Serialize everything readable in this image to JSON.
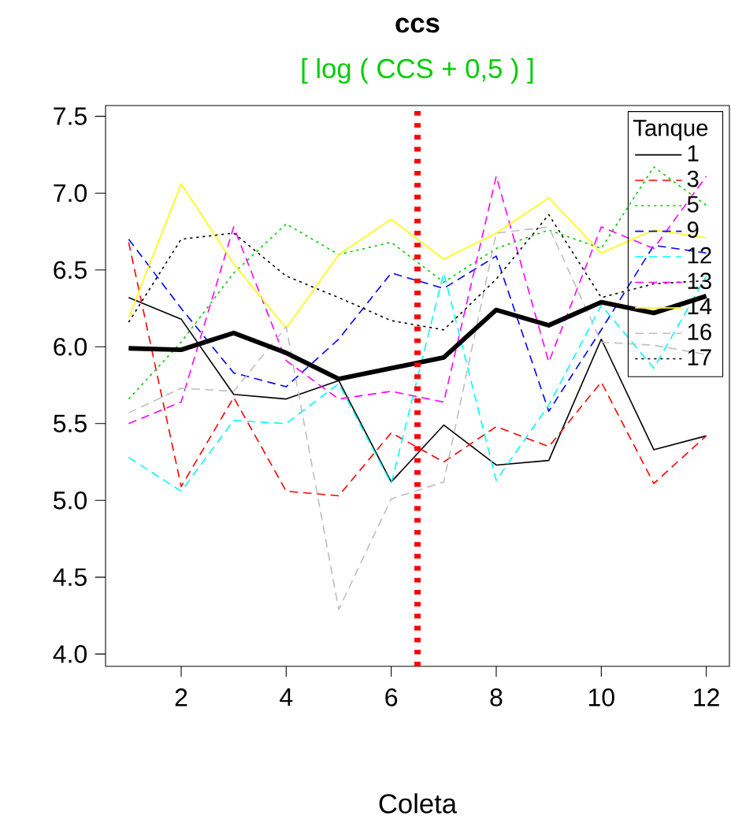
{
  "chart_data": {
    "type": "line",
    "title": "ccs",
    "subtitle": "[ log ( CCS + 0,5 ) ]",
    "xlabel": "Coleta",
    "legend_title": "Tanque",
    "legend": "top right",
    "grid": false,
    "marker": "none",
    "x": [
      1,
      2,
      3,
      4,
      5,
      6,
      7,
      8,
      9,
      10,
      11,
      12
    ],
    "xlim": [
      0.56,
      12.44
    ],
    "xticks": [
      2,
      4,
      6,
      8,
      10,
      12
    ],
    "ylim": [
      3.92,
      7.57
    ],
    "yticks": [
      {
        "value": 4,
        "label": "4.0"
      },
      {
        "value": 4.5,
        "label": "4.5"
      },
      {
        "value": 5,
        "label": "5.0"
      },
      {
        "value": 5.5,
        "label": "5.5"
      },
      {
        "value": 6,
        "label": "6.0"
      },
      {
        "value": 6.5,
        "label": "6.5"
      },
      {
        "value": 7,
        "label": "7.0"
      },
      {
        "value": 7.5,
        "label": "7.5"
      }
    ],
    "ref_lines": [
      {
        "axis": "x",
        "value": 6.5,
        "color": "#ff0000",
        "line_style": "dotted"
      }
    ],
    "series": [
      {
        "name": "1",
        "color": "#000000",
        "line_style": "solid",
        "values": [
          6.32,
          6.18,
          5.69,
          5.66,
          5.78,
          5.12,
          5.49,
          5.23,
          5.26,
          6.05,
          5.33,
          5.42
        ]
      },
      {
        "name": "3",
        "color": "#ff0000",
        "line_style": "dashed",
        "values": [
          6.68,
          5.09,
          5.67,
          5.06,
          5.03,
          5.44,
          5.25,
          5.48,
          5.35,
          5.77,
          5.11,
          5.42
        ]
      },
      {
        "name": "5",
        "color": "#00cd00",
        "line_style": "dotted",
        "values": [
          5.66,
          6.03,
          6.48,
          6.8,
          6.6,
          6.68,
          6.42,
          6.64,
          6.76,
          6.64,
          7.17,
          6.92
        ]
      },
      {
        "name": "9",
        "color": "#0000ff",
        "line_style": "dashed",
        "values": [
          6.7,
          6.25,
          5.83,
          5.74,
          6.05,
          6.48,
          6.38,
          6.59,
          5.58,
          6.11,
          6.66,
          6.61
        ]
      },
      {
        "name": "12",
        "color": "#00ffff",
        "line_style": "dashed",
        "values": [
          5.28,
          5.06,
          5.52,
          5.5,
          5.76,
          5.11,
          6.48,
          5.13,
          5.62,
          6.27,
          5.86,
          6.46
        ]
      },
      {
        "name": "13",
        "color": "#ff00ff",
        "line_style": "dashed",
        "values": [
          5.5,
          5.64,
          6.78,
          5.91,
          5.66,
          5.71,
          5.64,
          7.11,
          5.9,
          6.78,
          6.64,
          7.11
        ]
      },
      {
        "name": "14",
        "color": "#ffff00",
        "line_style": "solid",
        "values": [
          6.19,
          7.06,
          6.54,
          6.12,
          6.6,
          6.83,
          6.57,
          6.74,
          6.97,
          6.61,
          6.76,
          6.71
        ]
      },
      {
        "name": "16",
        "color": "#bebebe",
        "line_style": "dashed",
        "values": [
          5.57,
          5.73,
          5.71,
          6.13,
          4.29,
          5.01,
          5.12,
          6.74,
          6.78,
          6.03,
          6.01,
          5.95
        ]
      },
      {
        "name": "17",
        "color": "#000000",
        "line_style": "dotted",
        "values": [
          6.16,
          6.7,
          6.74,
          6.46,
          6.32,
          6.17,
          6.11,
          6.44,
          6.86,
          6.32,
          6.41,
          6.43
        ]
      },
      {
        "color": "#000000",
        "line_style": "solid",
        "values": [
          5.99,
          5.98,
          6.09,
          5.96,
          5.79,
          5.86,
          5.93,
          6.24,
          6.14,
          6.29,
          6.22,
          6.33
        ]
      }
    ]
  }
}
